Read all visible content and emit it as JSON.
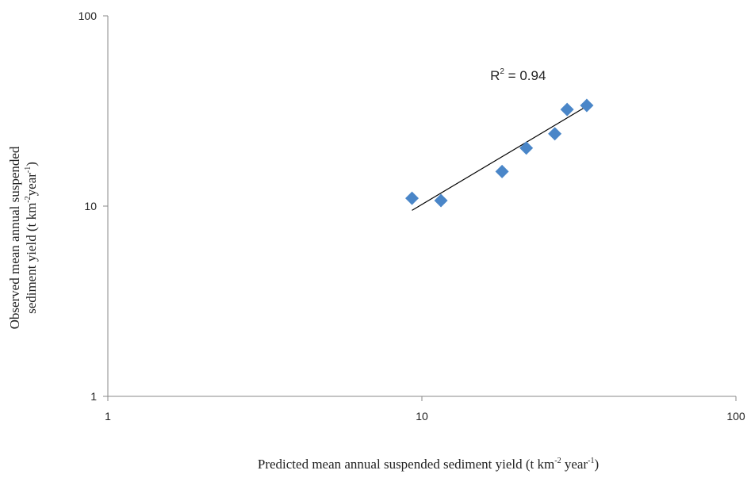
{
  "chart_data": {
    "type": "scatter",
    "x_scale": "log",
    "y_scale": "log",
    "xlim": [
      1,
      100
    ],
    "ylim": [
      1,
      100
    ],
    "grid": false,
    "xlabel": {
      "text": "Predicted mean annual suspended sediment yield (t km",
      "sup1": "-2",
      "mid": " year",
      "sup2": "-1",
      "end": ")"
    },
    "ylabel": {
      "line1": "Observed mean annual suspended",
      "line2_text": "sediment yield (t km",
      "line2_sup1": "-2",
      "line2_mid": "year",
      "line2_sup2": "-1",
      "line2_end": ")"
    },
    "x_ticks": [
      1,
      10,
      100
    ],
    "y_ticks": [
      1,
      10,
      100
    ],
    "x_tick_labels": [
      "1",
      "10",
      "100"
    ],
    "y_tick_labels": [
      "1",
      "10",
      "100"
    ],
    "series": [
      {
        "marker": "diamond",
        "color": "#4a86c8",
        "points": [
          {
            "x": 9.3,
            "y": 11.0
          },
          {
            "x": 11.5,
            "y": 10.7
          },
          {
            "x": 18.0,
            "y": 15.2
          },
          {
            "x": 21.5,
            "y": 20.2
          },
          {
            "x": 26.5,
            "y": 24.0
          },
          {
            "x": 29.0,
            "y": 32.2
          },
          {
            "x": 33.5,
            "y": 33.8
          }
        ]
      }
    ],
    "trendline": {
      "x": [
        9.3,
        33.5
      ],
      "y": [
        9.5,
        33.5
      ],
      "color": "#000000"
    },
    "annotation": {
      "base": "R",
      "sup": "2",
      "rest": " = 0.94",
      "x": 16.5,
      "y": 46
    }
  }
}
